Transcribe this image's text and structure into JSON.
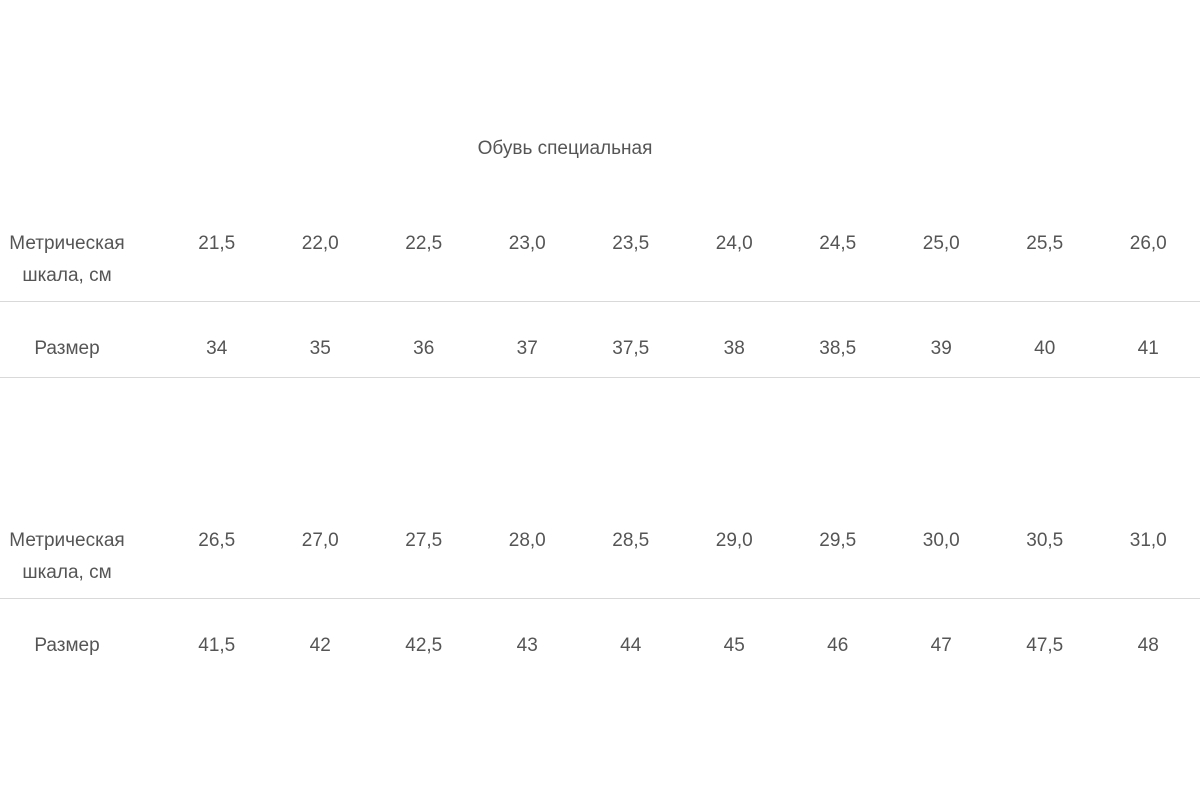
{
  "title": "Обувь специальная",
  "tables": [
    {
      "metric_label": [
        "Метрическая",
        "шкала, см"
      ],
      "metric_values": [
        "21,5",
        "22,0",
        "22,5",
        "23,0",
        "23,5",
        "24,0",
        "24,5",
        "25,0",
        "25,5",
        "26,0"
      ],
      "size_label": "Размер",
      "size_values": [
        "34",
        "35",
        "36",
        "37",
        "37,5",
        "38",
        "38,5",
        "39",
        "40",
        "41"
      ]
    },
    {
      "metric_label": [
        "Метрическая",
        "шкала, см"
      ],
      "metric_values": [
        "26,5",
        "27,0",
        "27,5",
        "28,0",
        "28,5",
        "29,0",
        "29,5",
        "30,0",
        "30,5",
        "31,0"
      ],
      "size_label": "Размер",
      "size_values": [
        "41,5",
        "42",
        "42,5",
        "43",
        "44",
        "45",
        "46",
        "47",
        "47,5",
        "48"
      ]
    }
  ]
}
